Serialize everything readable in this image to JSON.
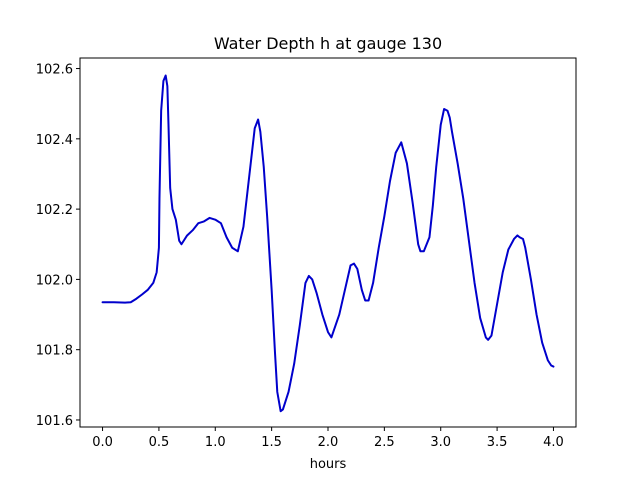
{
  "chart_data": {
    "type": "line",
    "title": "Water Depth h at gauge 130",
    "xlabel": "hours",
    "ylabel": "",
    "xlim": [
      -0.2,
      4.2
    ],
    "ylim": [
      101.58,
      102.63
    ],
    "xticks": [
      0.0,
      0.5,
      1.0,
      1.5,
      2.0,
      2.5,
      3.0,
      3.5,
      4.0
    ],
    "xtick_labels": [
      "0.0",
      "0.5",
      "1.0",
      "1.5",
      "2.0",
      "2.5",
      "3.0",
      "3.5",
      "4.0"
    ],
    "yticks": [
      101.6,
      101.8,
      102.0,
      102.2,
      102.4,
      102.6
    ],
    "ytick_labels": [
      "101.6",
      "101.8",
      "102.0",
      "102.2",
      "102.4",
      "102.6"
    ],
    "grid": false,
    "line_color": "#0000cc",
    "series": [
      {
        "x": [
          0.0,
          0.1,
          0.2,
          0.25,
          0.3,
          0.35,
          0.4,
          0.45,
          0.48,
          0.5,
          0.505,
          0.52,
          0.54,
          0.56,
          0.575,
          0.585,
          0.6,
          0.62,
          0.65,
          0.68,
          0.7,
          0.72,
          0.75,
          0.8,
          0.85,
          0.9,
          0.95,
          1.0,
          1.05,
          1.1,
          1.15,
          1.2,
          1.25,
          1.3,
          1.35,
          1.38,
          1.4,
          1.43,
          1.46,
          1.5,
          1.53,
          1.55,
          1.58,
          1.6,
          1.65,
          1.7,
          1.75,
          1.8,
          1.83,
          1.86,
          1.9,
          1.95,
          2.0,
          2.03,
          2.1,
          2.15,
          2.2,
          2.23,
          2.26,
          2.3,
          2.33,
          2.36,
          2.4,
          2.45,
          2.5,
          2.55,
          2.6,
          2.65,
          2.7,
          2.75,
          2.8,
          2.82,
          2.85,
          2.9,
          2.93,
          2.96,
          3.0,
          3.03,
          3.06,
          3.08,
          3.1,
          3.15,
          3.2,
          3.25,
          3.3,
          3.35,
          3.4,
          3.42,
          3.45,
          3.5,
          3.55,
          3.6,
          3.65,
          3.68,
          3.7,
          3.73,
          3.75,
          3.8,
          3.85,
          3.9,
          3.95,
          3.98,
          4.0
        ],
        "y": [
          101.935,
          101.935,
          101.934,
          101.935,
          101.945,
          101.957,
          101.97,
          101.99,
          102.02,
          102.09,
          102.23,
          102.48,
          102.565,
          102.58,
          102.55,
          102.44,
          102.26,
          102.2,
          102.17,
          102.11,
          102.1,
          102.11,
          102.125,
          102.14,
          102.16,
          102.165,
          102.175,
          102.17,
          102.16,
          102.12,
          102.09,
          102.08,
          102.15,
          102.29,
          102.43,
          102.455,
          102.42,
          102.32,
          102.18,
          101.97,
          101.79,
          101.68,
          101.625,
          101.63,
          101.68,
          101.76,
          101.87,
          101.99,
          102.01,
          102.0,
          101.96,
          101.9,
          101.85,
          101.835,
          101.9,
          101.97,
          102.04,
          102.045,
          102.03,
          101.97,
          101.94,
          101.94,
          101.99,
          102.09,
          102.18,
          102.28,
          102.36,
          102.39,
          102.33,
          102.22,
          102.1,
          102.08,
          102.08,
          102.12,
          102.21,
          102.32,
          102.44,
          102.485,
          102.48,
          102.46,
          102.42,
          102.33,
          102.23,
          102.11,
          101.99,
          101.89,
          101.835,
          101.828,
          101.84,
          101.93,
          102.02,
          102.085,
          102.115,
          102.125,
          102.12,
          102.115,
          102.09,
          102.0,
          101.9,
          101.82,
          101.77,
          101.755,
          101.752
        ]
      }
    ]
  }
}
